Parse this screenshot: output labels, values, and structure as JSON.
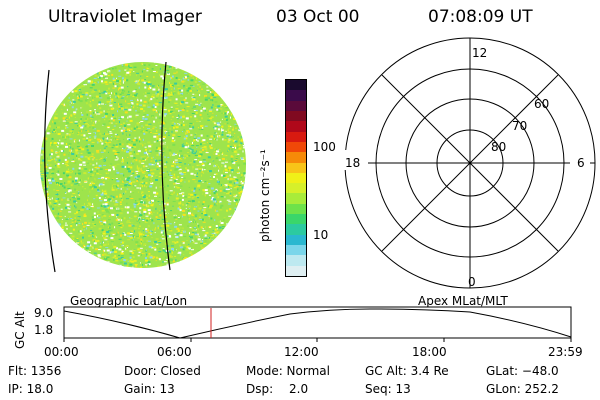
{
  "header": {
    "title": "Ultraviolet Imager",
    "date": "03 Oct 00",
    "time": "07:08:09 UT"
  },
  "colorbar": {
    "unit_label": "photon cm⁻²s⁻¹",
    "tick_labels": [
      "100",
      "10"
    ],
    "colors": [
      "#1a0a2e",
      "#3a0b4a",
      "#5a0a3a",
      "#800a20",
      "#b0081a",
      "#d81a10",
      "#f04808",
      "#f68a08",
      "#f8c418",
      "#f0f018",
      "#d6f02a",
      "#a8ec3a",
      "#6ee24a",
      "#3ad66a",
      "#2ccaa0",
      "#2ab8d0",
      "#7ad6ea",
      "#bde9f0",
      "#dfeff2"
    ]
  },
  "polar_plot": {
    "clock_labels": [
      "12",
      "18",
      "6",
      "0"
    ],
    "lat_labels": [
      "60",
      "70",
      "80"
    ]
  },
  "timeline": {
    "left_label": "Geographic Lat/Lon",
    "right_label": "Apex MLat/MLT",
    "axis_title": "GC Alt",
    "y_ticks": [
      "9.0",
      "1.8"
    ],
    "x_ticks": [
      "00:00",
      "06:00",
      "12:00",
      "18:00",
      "23:59"
    ],
    "marker_color": "#d02020"
  },
  "info": {
    "flt": "Flt: 1356",
    "door": "Door: Closed",
    "mode": "Mode: Normal",
    "gc_alt": "GC Alt: 3.4 Re",
    "glat": "GLat: −48.0",
    "ip": "IP: 18.0",
    "gain": "Gain: 13",
    "dsp_label": "Dsp:",
    "dsp_value": "2.0",
    "seq": "Seq: 13",
    "glon": "GLon: 252.2"
  }
}
